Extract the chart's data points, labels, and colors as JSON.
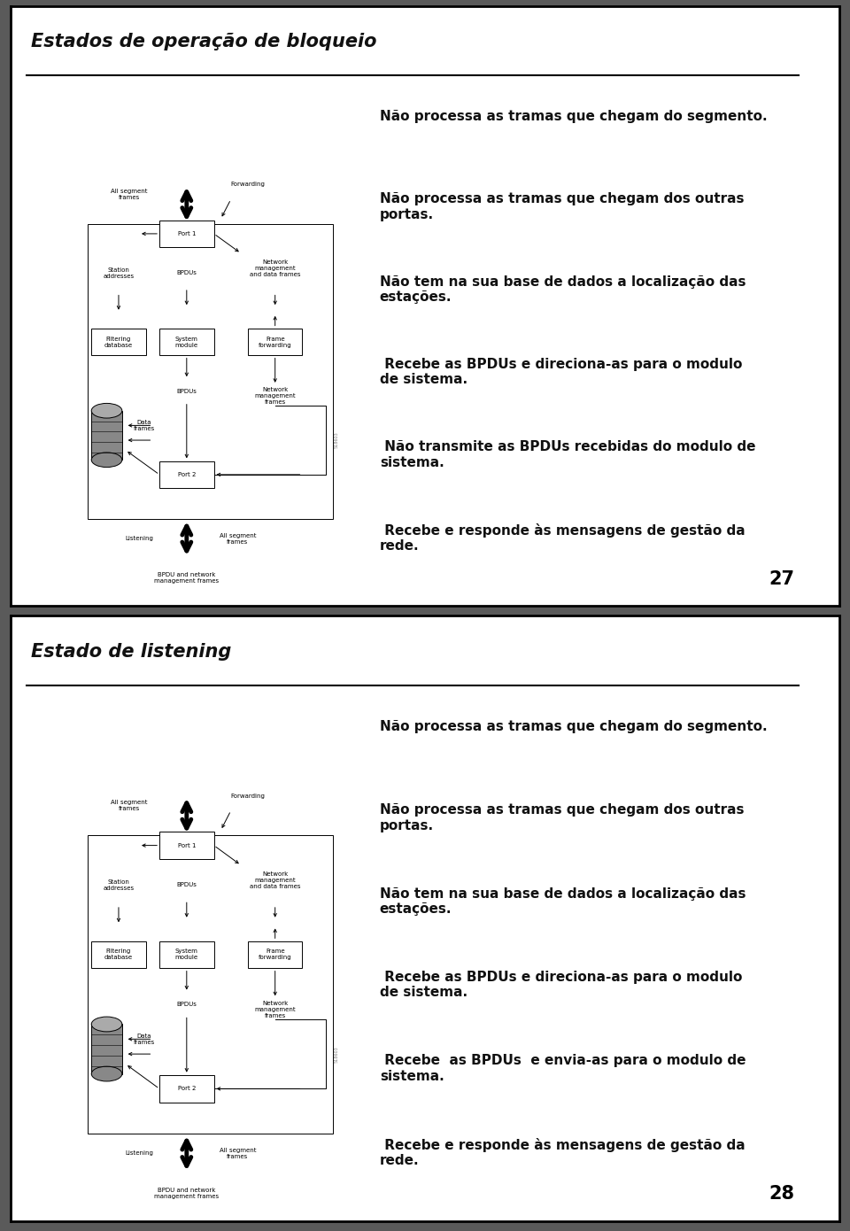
{
  "slide1": {
    "title": "Estados de operação de bloqueio",
    "bullet_points": [
      "Não processa as tramas que chegam do segmento.",
      "Não processa as tramas que chegam dos outras\nportas.",
      "Não tem na sua base de dados a localização das\nestações.",
      " Recebe as BPDUs e direciona-as para o modulo\nde sistema.",
      " Não transmite as BPDUs recebidas do modulo de\nsistema.",
      " Recebe e responde às mensagens de gestão da\nrede."
    ],
    "page_number": "27"
  },
  "slide2": {
    "title": "Estado de listening",
    "bullet_points": [
      "Não processa as tramas que chegam do segmento.",
      "Não processa as tramas que chegam dos outras\nportas.",
      "Não tem na sua base de dados a localização das\nestações.",
      " Recebe as BPDUs e direciona-as para o modulo\nde sistema.",
      " Recebe  as BPDUs  e envia-as para o modulo de\nsistema.",
      " Recebe e responde às mensagens de gestão da\nrede."
    ],
    "page_number": "28"
  },
  "bg_color": "#ffffff",
  "border_color": "#000000",
  "sep_color": "#444444",
  "title_fontsize": 15,
  "bullet_fontsize": 11,
  "page_num_fontsize": 15,
  "diagram_fs": 5.0
}
